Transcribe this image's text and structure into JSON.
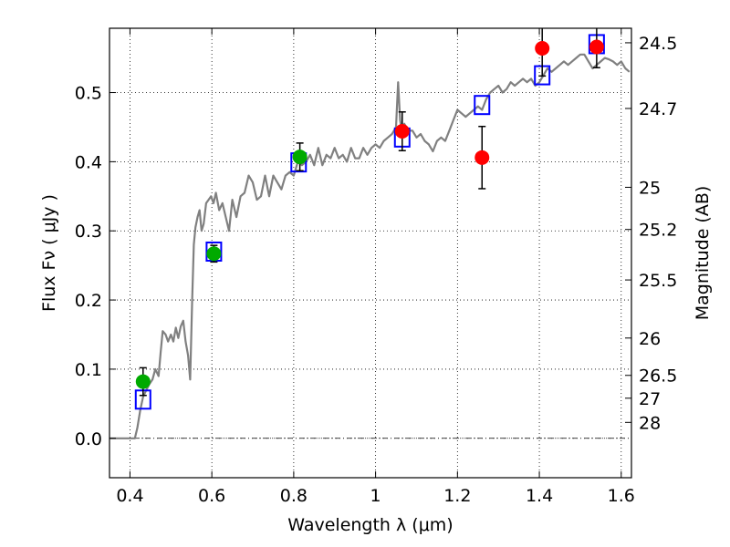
{
  "chart_data": {
    "type": "scatter",
    "xlabel": "Wavelength  λ (μm)",
    "ylabel": "Flux  Fν  ( μJy )",
    "ylabel_right": "Magnitude (AB)",
    "xlim": [
      0.35,
      1.625
    ],
    "ylim": [
      -0.057,
      0.593
    ],
    "grid": true,
    "x_ticks": [
      {
        "value": 0.4,
        "label": "0.4"
      },
      {
        "value": 0.6,
        "label": "0.6"
      },
      {
        "value": 0.8,
        "label": "0.8"
      },
      {
        "value": 1.0,
        "label": "1"
      },
      {
        "value": 1.2,
        "label": "1.2"
      },
      {
        "value": 1.4,
        "label": "1.4"
      },
      {
        "value": 1.6,
        "label": "1.6"
      }
    ],
    "y_ticks": [
      {
        "value": 0.0,
        "label": "0.0"
      },
      {
        "value": 0.1,
        "label": "0.1"
      },
      {
        "value": 0.2,
        "label": "0.2"
      },
      {
        "value": 0.3,
        "label": "0.3"
      },
      {
        "value": 0.4,
        "label": "0.4"
      },
      {
        "value": 0.5,
        "label": "0.5"
      }
    ],
    "right_ticks": [
      {
        "flux": 0.572,
        "label": "24.5"
      },
      {
        "flux": 0.477,
        "label": "24.7"
      },
      {
        "flux": 0.363,
        "label": "25"
      },
      {
        "flux": 0.302,
        "label": "25.2"
      },
      {
        "flux": 0.229,
        "label": "25.5"
      },
      {
        "flux": 0.145,
        "label": "26"
      },
      {
        "flux": 0.091,
        "label": "26.5"
      },
      {
        "flux": 0.058,
        "label": "27"
      },
      {
        "flux": 0.023,
        "label": "28"
      }
    ],
    "series": [
      {
        "kind": "line",
        "color": "#808080",
        "points": [
          [
            0.35,
            0.0
          ],
          [
            0.412,
            0.0
          ],
          [
            0.418,
            0.015
          ],
          [
            0.425,
            0.04
          ],
          [
            0.432,
            0.06
          ],
          [
            0.44,
            0.07
          ],
          [
            0.447,
            0.078
          ],
          [
            0.455,
            0.085
          ],
          [
            0.462,
            0.1
          ],
          [
            0.47,
            0.09
          ],
          [
            0.475,
            0.125
          ],
          [
            0.48,
            0.155
          ],
          [
            0.487,
            0.15
          ],
          [
            0.493,
            0.14
          ],
          [
            0.5,
            0.15
          ],
          [
            0.506,
            0.14
          ],
          [
            0.512,
            0.16
          ],
          [
            0.518,
            0.145
          ],
          [
            0.524,
            0.162
          ],
          [
            0.53,
            0.17
          ],
          [
            0.536,
            0.14
          ],
          [
            0.542,
            0.12
          ],
          [
            0.547,
            0.085
          ],
          [
            0.552,
            0.2
          ],
          [
            0.556,
            0.28
          ],
          [
            0.56,
            0.305
          ],
          [
            0.565,
            0.32
          ],
          [
            0.57,
            0.33
          ],
          [
            0.575,
            0.3
          ],
          [
            0.58,
            0.31
          ],
          [
            0.586,
            0.34
          ],
          [
            0.592,
            0.345
          ],
          [
            0.598,
            0.35
          ],
          [
            0.604,
            0.34
          ],
          [
            0.61,
            0.355
          ],
          [
            0.618,
            0.33
          ],
          [
            0.626,
            0.34
          ],
          [
            0.634,
            0.32
          ],
          [
            0.642,
            0.3
          ],
          [
            0.65,
            0.345
          ],
          [
            0.66,
            0.32
          ],
          [
            0.67,
            0.35
          ],
          [
            0.68,
            0.355
          ],
          [
            0.69,
            0.38
          ],
          [
            0.7,
            0.37
          ],
          [
            0.71,
            0.345
          ],
          [
            0.72,
            0.35
          ],
          [
            0.73,
            0.38
          ],
          [
            0.74,
            0.35
          ],
          [
            0.75,
            0.38
          ],
          [
            0.76,
            0.37
          ],
          [
            0.77,
            0.36
          ],
          [
            0.78,
            0.38
          ],
          [
            0.79,
            0.385
          ],
          [
            0.8,
            0.38
          ],
          [
            0.81,
            0.4
          ],
          [
            0.82,
            0.395
          ],
          [
            0.83,
            0.4
          ],
          [
            0.84,
            0.41
          ],
          [
            0.85,
            0.395
          ],
          [
            0.86,
            0.42
          ],
          [
            0.87,
            0.395
          ],
          [
            0.88,
            0.41
          ],
          [
            0.89,
            0.405
          ],
          [
            0.9,
            0.42
          ],
          [
            0.91,
            0.405
          ],
          [
            0.92,
            0.41
          ],
          [
            0.93,
            0.4
          ],
          [
            0.94,
            0.42
          ],
          [
            0.95,
            0.405
          ],
          [
            0.96,
            0.405
          ],
          [
            0.97,
            0.42
          ],
          [
            0.98,
            0.41
          ],
          [
            0.99,
            0.42
          ],
          [
            1.0,
            0.425
          ],
          [
            1.01,
            0.42
          ],
          [
            1.02,
            0.43
          ],
          [
            1.03,
            0.435
          ],
          [
            1.04,
            0.44
          ],
          [
            1.05,
            0.45
          ],
          [
            1.055,
            0.515
          ],
          [
            1.06,
            0.46
          ],
          [
            1.065,
            0.44
          ],
          [
            1.07,
            0.455
          ],
          [
            1.08,
            0.445
          ],
          [
            1.09,
            0.445
          ],
          [
            1.1,
            0.435
          ],
          [
            1.11,
            0.44
          ],
          [
            1.12,
            0.43
          ],
          [
            1.13,
            0.425
          ],
          [
            1.14,
            0.415
          ],
          [
            1.15,
            0.43
          ],
          [
            1.16,
            0.435
          ],
          [
            1.17,
            0.43
          ],
          [
            1.18,
            0.445
          ],
          [
            1.19,
            0.46
          ],
          [
            1.2,
            0.475
          ],
          [
            1.21,
            0.47
          ],
          [
            1.22,
            0.465
          ],
          [
            1.23,
            0.47
          ],
          [
            1.24,
            0.475
          ],
          [
            1.25,
            0.48
          ],
          [
            1.26,
            0.475
          ],
          [
            1.27,
            0.49
          ],
          [
            1.28,
            0.5
          ],
          [
            1.29,
            0.505
          ],
          [
            1.3,
            0.51
          ],
          [
            1.31,
            0.5
          ],
          [
            1.32,
            0.505
          ],
          [
            1.33,
            0.515
          ],
          [
            1.34,
            0.51
          ],
          [
            1.35,
            0.515
          ],
          [
            1.36,
            0.52
          ],
          [
            1.37,
            0.515
          ],
          [
            1.38,
            0.52
          ],
          [
            1.39,
            0.51
          ],
          [
            1.4,
            0.515
          ],
          [
            1.41,
            0.525
          ],
          [
            1.42,
            0.535
          ],
          [
            1.43,
            0.53
          ],
          [
            1.44,
            0.535
          ],
          [
            1.45,
            0.54
          ],
          [
            1.46,
            0.545
          ],
          [
            1.47,
            0.54
          ],
          [
            1.48,
            0.545
          ],
          [
            1.49,
            0.55
          ],
          [
            1.5,
            0.555
          ],
          [
            1.51,
            0.555
          ],
          [
            1.52,
            0.545
          ],
          [
            1.53,
            0.535
          ],
          [
            1.54,
            0.54
          ],
          [
            1.55,
            0.545
          ],
          [
            1.56,
            0.55
          ],
          [
            1.57,
            0.548
          ],
          [
            1.58,
            0.545
          ],
          [
            1.59,
            0.54
          ],
          [
            1.6,
            0.545
          ],
          [
            1.61,
            0.535
          ],
          [
            1.62,
            0.53
          ]
        ]
      },
      {
        "kind": "box",
        "color": "#0000ff",
        "points": [
          [
            0.432,
            0.056
          ],
          [
            0.605,
            0.27
          ],
          [
            0.812,
            0.399
          ],
          [
            1.065,
            0.435
          ],
          [
            1.26,
            0.482
          ],
          [
            1.407,
            0.525
          ],
          [
            1.54,
            0.57
          ]
        ]
      },
      {
        "kind": "point",
        "color": "#00aa00",
        "points": [
          {
            "x": 0.432,
            "y": 0.082,
            "yerr": 0.02
          },
          {
            "x": 0.605,
            "y": 0.267,
            "yerr": 0.012
          },
          {
            "x": 0.815,
            "y": 0.407,
            "yerr": 0.02
          }
        ]
      },
      {
        "kind": "point",
        "color": "#ff0000",
        "points": [
          {
            "x": 1.065,
            "y": 0.444,
            "yerr": 0.028
          },
          {
            "x": 1.26,
            "y": 0.406,
            "yerr": 0.045
          },
          {
            "x": 1.407,
            "y": 0.564,
            "yerr": 0.04
          },
          {
            "x": 1.54,
            "y": 0.566,
            "yerr": 0.03
          }
        ]
      }
    ]
  }
}
